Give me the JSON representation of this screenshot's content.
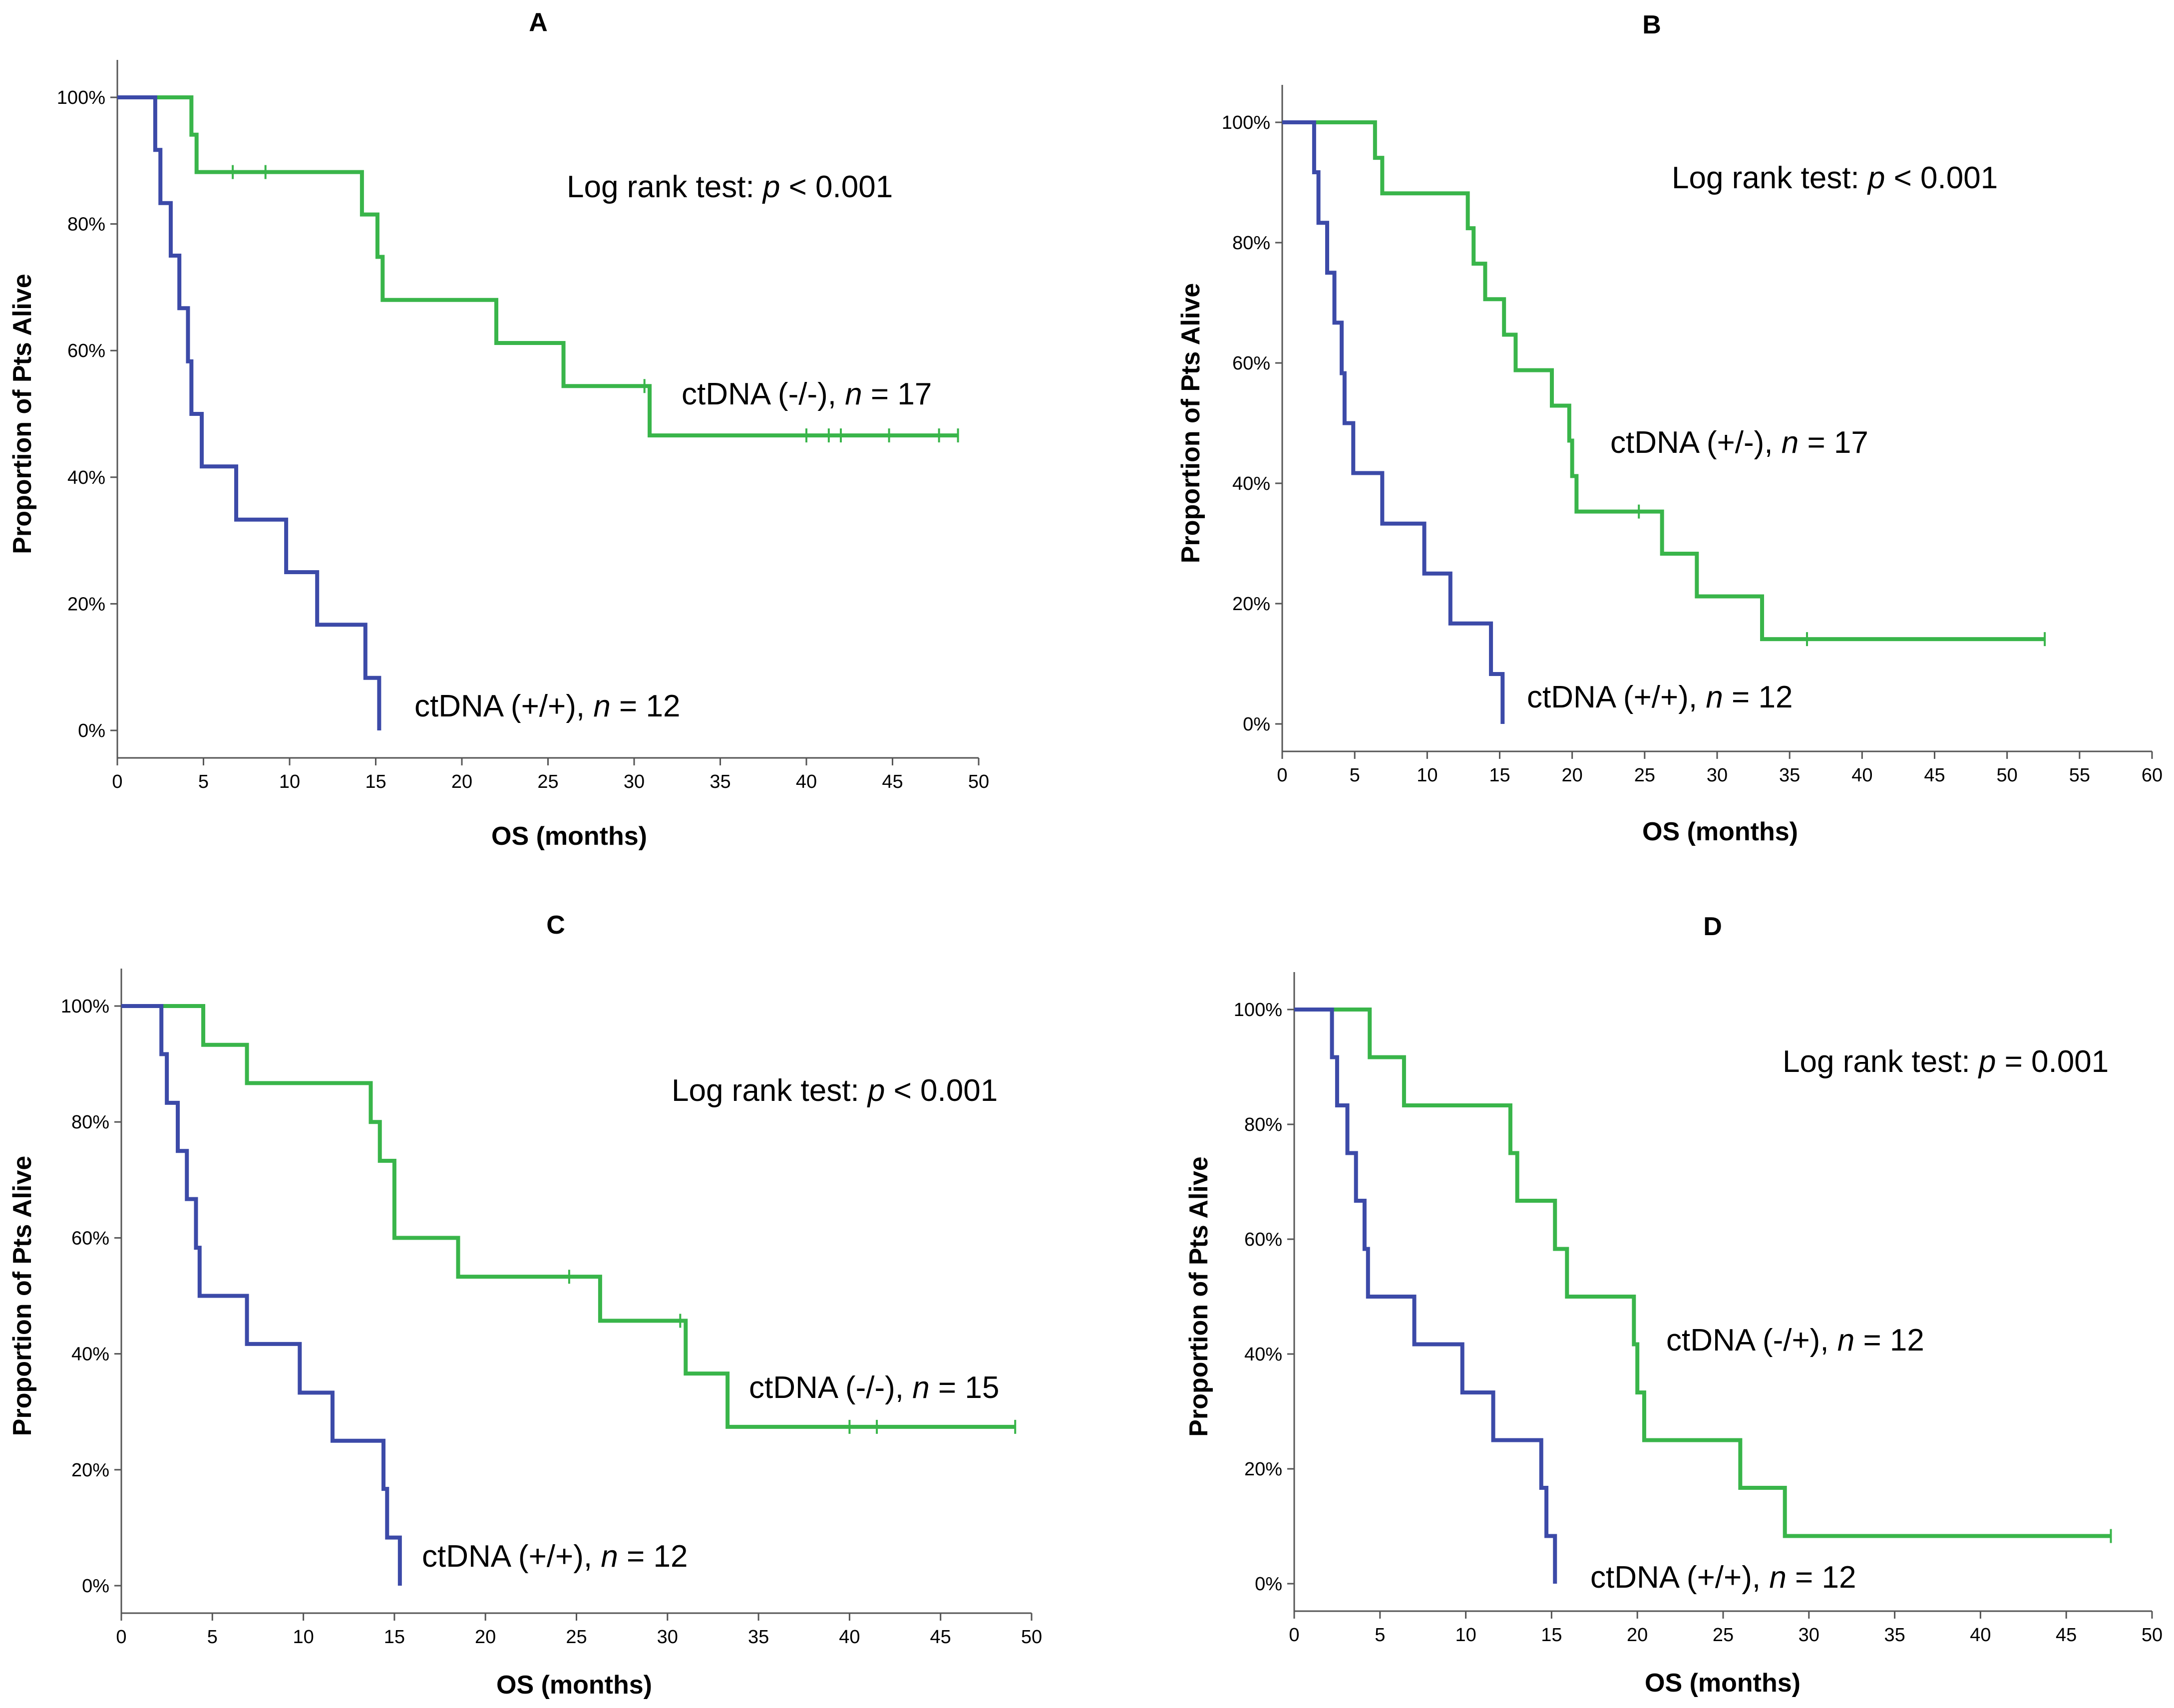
{
  "colors": {
    "positive": "#3c4aa8",
    "negative": "#39b54a"
  },
  "chart_data": [
    {
      "id": "A",
      "type": "line",
      "title": "A",
      "xlabel": "OS (months)",
      "ylabel": "Proportion of Pts Alive",
      "xlim": [
        0,
        50
      ],
      "ylim": [
        0,
        1
      ],
      "xticks": [
        0,
        5,
        10,
        15,
        20,
        25,
        30,
        35,
        40,
        45,
        50
      ],
      "yticks": [
        0,
        0.2,
        0.4,
        0.6,
        0.8,
        1.0
      ],
      "ytick_labels": [
        "0%",
        "20%",
        "40%",
        "60%",
        "80%",
        "100%"
      ],
      "log_rank": {
        "prefix": "Log rank test: ",
        "p_symbol": "p",
        "relation": " < ",
        "value": "0.001"
      },
      "series": [
        {
          "name": "ctDNA (-/-)",
          "n": "17",
          "color_key": "negative",
          "steps": [
            [
              0,
              1.0
            ],
            [
              4.3,
              0.941
            ],
            [
              4.6,
              0.882
            ],
            [
              14.2,
              0.815
            ],
            [
              15.1,
              0.748
            ],
            [
              15.4,
              0.68
            ],
            [
              22.0,
              0.612
            ],
            [
              25.9,
              0.544
            ],
            [
              30.9,
              0.466
            ]
          ],
          "end_x": 48.8,
          "censors": [
            [
              6.7,
              0.882
            ],
            [
              8.6,
              0.882
            ],
            [
              30.6,
              0.544
            ],
            [
              40.0,
              0.466
            ],
            [
              41.3,
              0.466
            ],
            [
              42.0,
              0.466
            ],
            [
              44.8,
              0.466
            ],
            [
              47.7,
              0.466
            ],
            [
              48.8,
              0.466
            ]
          ]
        },
        {
          "name": "ctDNA (+/+)",
          "n": "12",
          "color_key": "positive",
          "steps": [
            [
              0,
              1.0
            ],
            [
              2.2,
              0.917
            ],
            [
              2.5,
              0.833
            ],
            [
              3.1,
              0.75
            ],
            [
              3.6,
              0.667
            ],
            [
              4.1,
              0.583
            ],
            [
              4.3,
              0.5
            ],
            [
              4.9,
              0.417
            ],
            [
              6.9,
              0.333
            ],
            [
              9.8,
              0.25
            ],
            [
              11.6,
              0.167
            ],
            [
              14.4,
              0.083
            ],
            [
              15.2,
              0.0
            ]
          ],
          "end_x": 15.2,
          "censors": []
        }
      ]
    },
    {
      "id": "B",
      "type": "line",
      "title": "B",
      "xlabel": "OS (months)",
      "ylabel": "Proportion of Pts Alive",
      "xlim": [
        0,
        60
      ],
      "ylim": [
        0,
        1
      ],
      "xticks": [
        0,
        5,
        10,
        15,
        20,
        25,
        30,
        35,
        40,
        45,
        50,
        55,
        60
      ],
      "yticks": [
        0,
        0.2,
        0.4,
        0.6,
        0.8,
        1.0
      ],
      "ytick_labels": [
        "0%",
        "20%",
        "40%",
        "60%",
        "80%",
        "100%"
      ],
      "log_rank": {
        "prefix": "Log rank test: ",
        "p_symbol": "p",
        "relation": " < ",
        "value": "0.001"
      },
      "series": [
        {
          "name": "ctDNA (+/-)",
          "n": "17",
          "color_key": "negative",
          "steps": [
            [
              0,
              1.0
            ],
            [
              6.4,
              0.941
            ],
            [
              6.9,
              0.882
            ],
            [
              12.8,
              0.824
            ],
            [
              13.2,
              0.765
            ],
            [
              14.0,
              0.706
            ],
            [
              15.3,
              0.647
            ],
            [
              16.1,
              0.588
            ],
            [
              18.6,
              0.529
            ],
            [
              19.8,
              0.471
            ],
            [
              20.0,
              0.412
            ],
            [
              20.3,
              0.353
            ],
            [
              26.2,
              0.283
            ],
            [
              28.6,
              0.212
            ],
            [
              33.1,
              0.141
            ]
          ],
          "end_x": 52.6,
          "censors": [
            [
              24.6,
              0.353
            ],
            [
              36.2,
              0.141
            ],
            [
              52.6,
              0.141
            ]
          ]
        },
        {
          "name": "ctDNA (+/+)",
          "n": "12",
          "color_key": "positive",
          "steps": [
            [
              0,
              1.0
            ],
            [
              2.2,
              0.917
            ],
            [
              2.5,
              0.833
            ],
            [
              3.1,
              0.75
            ],
            [
              3.6,
              0.667
            ],
            [
              4.1,
              0.583
            ],
            [
              4.3,
              0.5
            ],
            [
              4.9,
              0.417
            ],
            [
              6.9,
              0.333
            ],
            [
              9.8,
              0.25
            ],
            [
              11.6,
              0.167
            ],
            [
              14.4,
              0.083
            ],
            [
              15.2,
              0.0
            ]
          ],
          "end_x": 15.2,
          "censors": []
        }
      ]
    },
    {
      "id": "C",
      "type": "line",
      "title": "C",
      "xlabel": "OS (months)",
      "ylabel": "Proportion of Pts Alive",
      "xlim": [
        0,
        50
      ],
      "ylim": [
        0,
        1
      ],
      "xticks": [
        0,
        5,
        10,
        15,
        20,
        25,
        30,
        35,
        40,
        45,
        50
      ],
      "yticks": [
        0,
        0.2,
        0.4,
        0.6,
        0.8,
        1.0
      ],
      "ytick_labels": [
        "0%",
        "20%",
        "40%",
        "60%",
        "80%",
        "100%"
      ],
      "log_rank": {
        "prefix": "Log rank test: ",
        "p_symbol": "p",
        "relation": " < ",
        "value": "0.001"
      },
      "series": [
        {
          "name": "ctDNA (-/-)",
          "n": "15",
          "color_key": "negative",
          "steps": [
            [
              0,
              1.0
            ],
            [
              4.5,
              0.933
            ],
            [
              6.9,
              0.867
            ],
            [
              13.7,
              0.8
            ],
            [
              14.2,
              0.733
            ],
            [
              15.0,
              0.6
            ],
            [
              18.5,
              0.533
            ],
            [
              26.3,
              0.457
            ],
            [
              31.0,
              0.366
            ],
            [
              33.3,
              0.274
            ]
          ],
          "end_x": 49.1,
          "censors": [
            [
              24.6,
              0.533
            ],
            [
              30.7,
              0.457
            ],
            [
              40.0,
              0.274
            ],
            [
              41.5,
              0.274
            ],
            [
              49.1,
              0.274
            ]
          ]
        },
        {
          "name": "ctDNA (+/+)",
          "n": "12",
          "color_key": "positive",
          "steps": [
            [
              0,
              1.0
            ],
            [
              2.2,
              0.917
            ],
            [
              2.5,
              0.833
            ],
            [
              3.1,
              0.75
            ],
            [
              3.6,
              0.667
            ],
            [
              4.1,
              0.583
            ],
            [
              4.3,
              0.5
            ],
            [
              6.9,
              0.417
            ],
            [
              9.8,
              0.333
            ],
            [
              11.6,
              0.25
            ],
            [
              14.4,
              0.167
            ],
            [
              14.6,
              0.083
            ],
            [
              15.3,
              0.0
            ]
          ],
          "end_x": 15.3,
          "censors": []
        }
      ]
    },
    {
      "id": "D",
      "type": "line",
      "title": "D",
      "xlabel": "OS (months)",
      "ylabel": "Proportion of Pts Alive",
      "xlim": [
        0,
        50
      ],
      "ylim": [
        0,
        1
      ],
      "xticks": [
        0,
        5,
        10,
        15,
        20,
        25,
        30,
        35,
        40,
        45,
        50
      ],
      "yticks": [
        0,
        0.2,
        0.4,
        0.6,
        0.8,
        1.0
      ],
      "ytick_labels": [
        "0%",
        "20%",
        "40%",
        "60%",
        "80%",
        "100%"
      ],
      "log_rank": {
        "prefix": "Log rank test: ",
        "p_symbol": "p",
        "relation": " = ",
        "value": "0.001"
      },
      "series": [
        {
          "name": "ctDNA (-/+)",
          "n": "12",
          "color_key": "negative",
          "steps": [
            [
              0,
              1.0
            ],
            [
              4.4,
              0.917
            ],
            [
              6.4,
              0.833
            ],
            [
              12.6,
              0.75
            ],
            [
              13.0,
              0.667
            ],
            [
              15.2,
              0.583
            ],
            [
              15.9,
              0.5
            ],
            [
              19.8,
              0.417
            ],
            [
              20.0,
              0.333
            ],
            [
              20.4,
              0.25
            ],
            [
              26.0,
              0.167
            ],
            [
              28.6,
              0.083
            ]
          ],
          "end_x": 47.6,
          "censors": [
            [
              47.6,
              0.083
            ]
          ]
        },
        {
          "name": "ctDNA (+/+)",
          "n": "12",
          "color_key": "positive",
          "steps": [
            [
              0,
              1.0
            ],
            [
              2.2,
              0.917
            ],
            [
              2.5,
              0.833
            ],
            [
              3.1,
              0.75
            ],
            [
              3.6,
              0.667
            ],
            [
              4.1,
              0.583
            ],
            [
              4.3,
              0.5
            ],
            [
              7.0,
              0.417
            ],
            [
              9.8,
              0.333
            ],
            [
              11.6,
              0.25
            ],
            [
              14.4,
              0.167
            ],
            [
              14.7,
              0.083
            ],
            [
              15.2,
              0.0
            ]
          ],
          "end_x": 15.2,
          "censors": []
        }
      ]
    }
  ]
}
